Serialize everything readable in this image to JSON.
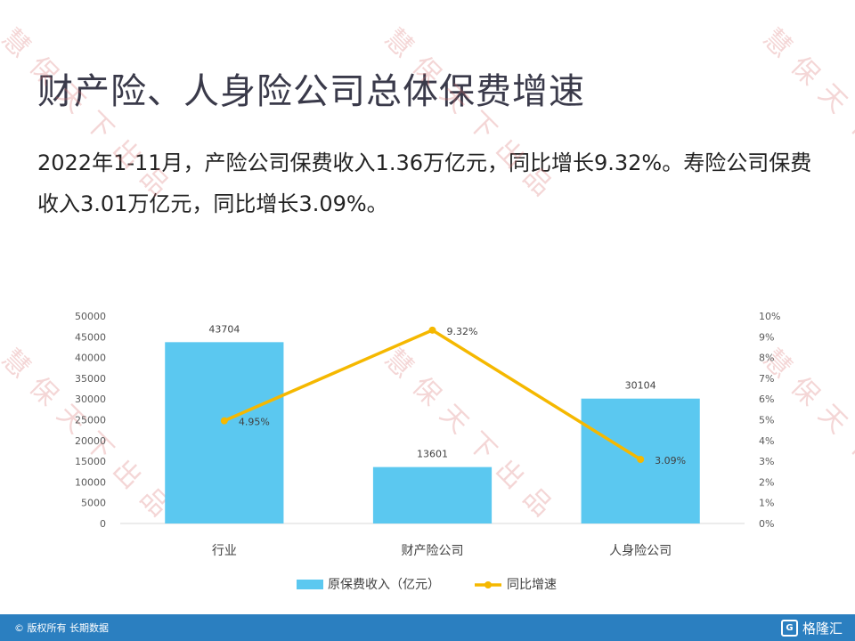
{
  "slide": {
    "title": "财产险、人身险公司总体保费增速",
    "body": "2022年1-11月，产险公司保费收入1.36万亿元，同比增长9.32%。寿险公司保费收入3.01万亿元，同比增长3.09%。"
  },
  "watermark": {
    "text": "慧保天下出品"
  },
  "footer": {
    "copyright_icon": "copyright-icon",
    "copyright": "版权所有 长期数据",
    "logo_text": "格隆汇",
    "logo_icon": "g-logo-icon"
  },
  "chart_data": {
    "type": "bar",
    "categories": [
      "行业",
      "财产险公司",
      "人身险公司"
    ],
    "series": [
      {
        "name": "原保费收入（亿元）",
        "type": "bar",
        "axis": "left",
        "values": [
          43704,
          13601,
          30104
        ],
        "labels": [
          "43704",
          "13601",
          "30104"
        ],
        "color": "#5bc8f0"
      },
      {
        "name": "同比增速",
        "type": "line",
        "axis": "right",
        "values": [
          4.95,
          9.32,
          3.09
        ],
        "labels": [
          "4.95%",
          "9.32%",
          "3.09%"
        ],
        "color": "#f5b800"
      }
    ],
    "y_left": {
      "min": 0,
      "max": 50000,
      "ticks": [
        "0",
        "5000",
        "10000",
        "15000",
        "20000",
        "25000",
        "30000",
        "35000",
        "40000",
        "45000",
        "50000"
      ]
    },
    "y_right": {
      "min": 0,
      "max": 10,
      "ticks": [
        "0%",
        "1%",
        "2%",
        "3%",
        "4%",
        "5%",
        "6%",
        "7%",
        "8%",
        "9%",
        "10%"
      ]
    },
    "legend": {
      "position": "bottom"
    },
    "grid": false
  }
}
